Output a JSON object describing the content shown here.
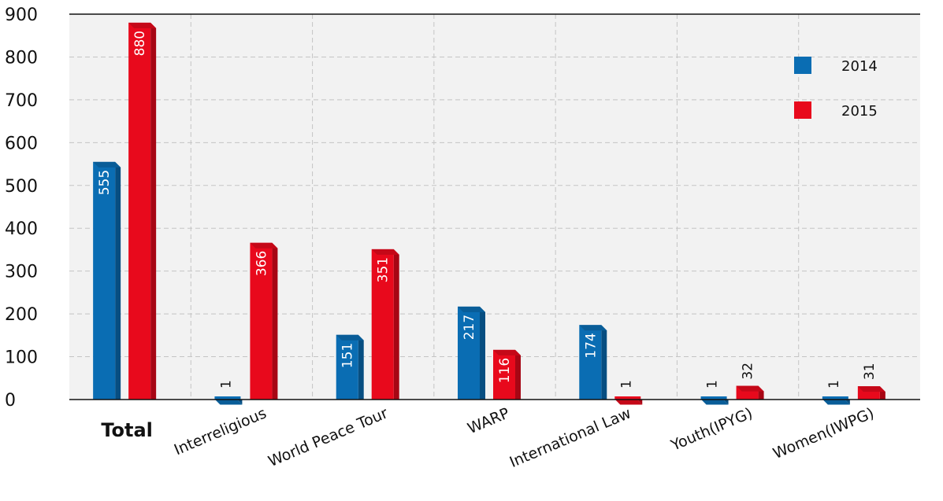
{
  "chart_data": {
    "type": "bar",
    "categories": [
      "Total",
      "Interreligious",
      "World Peace Tour",
      "WARP",
      "International Law",
      "Youth(IPYG)",
      "Women(IWPG)"
    ],
    "series": [
      {
        "name": "2014",
        "values": [
          555,
          1,
          151,
          217,
          174,
          1,
          1
        ],
        "labels": [
          "555",
          "1",
          "151",
          "217",
          "174",
          "1",
          "1"
        ],
        "color": "#0a6db3"
      },
      {
        "name": "2015",
        "values": [
          880,
          366,
          351,
          116,
          1,
          32,
          31
        ],
        "labels": [
          "880",
          "366",
          "351",
          "116",
          "1",
          "32",
          "31"
        ],
        "color": "#e8091c"
      }
    ],
    "yticks": [
      "0",
      "100",
      "200",
      "300",
      "400",
      "500",
      "600",
      "700",
      "800",
      "900"
    ],
    "ylim": [
      0,
      900
    ],
    "grid": true,
    "plot_background": "#f2f2f2",
    "legend_position": "top-right"
  }
}
